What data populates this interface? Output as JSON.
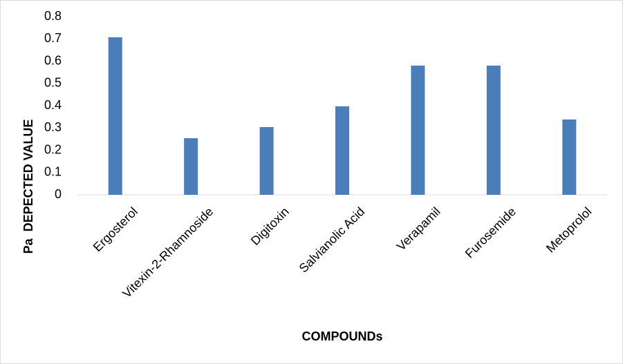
{
  "chart_data": {
    "type": "bar",
    "x_label": "COMPOUNDs",
    "y_label": "Pa  DEPECTED VALUE",
    "categories": [
      "Ergosterol",
      "Vitexin-2-Rhamnoside",
      "Digitoxin",
      "Salvianolic Acid",
      "Verapamil",
      "Furosemide",
      "Metoprolol"
    ],
    "values": [
      0.707,
      0.254,
      0.304,
      0.397,
      0.58,
      0.58,
      0.338
    ],
    "color": "#4a7ebb",
    "ylim": [
      0,
      0.8
    ],
    "yticks": [
      0,
      0.1,
      0.2,
      0.3,
      0.4,
      0.5,
      0.6,
      0.7,
      0.8
    ],
    "grid": false
  }
}
